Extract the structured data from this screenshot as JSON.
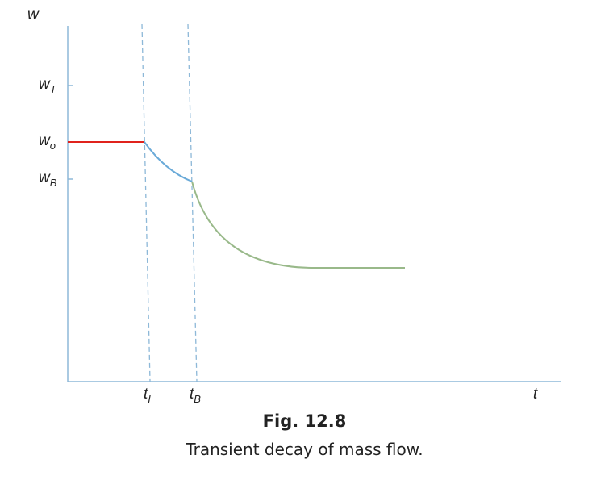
{
  "figure": {
    "y_axis_label": "w",
    "x_axis_label": "t",
    "y_ticks": [
      {
        "base": "w",
        "sub": "T"
      },
      {
        "base": "w",
        "sub": "o"
      },
      {
        "base": "w",
        "sub": "B"
      }
    ],
    "x_ticks": [
      {
        "base": "t",
        "sub": "I"
      },
      {
        "base": "t",
        "sub": "B"
      }
    ],
    "colors": {
      "axis": "#8db8d8",
      "steady_segment": "#e0231c",
      "first_decay": "#6aaad8",
      "second_decay": "#99b98a",
      "guide_lines": "#8db8d8"
    }
  },
  "caption": {
    "number": "Fig. 12.8",
    "text": "Transient decay of mass flow."
  }
}
